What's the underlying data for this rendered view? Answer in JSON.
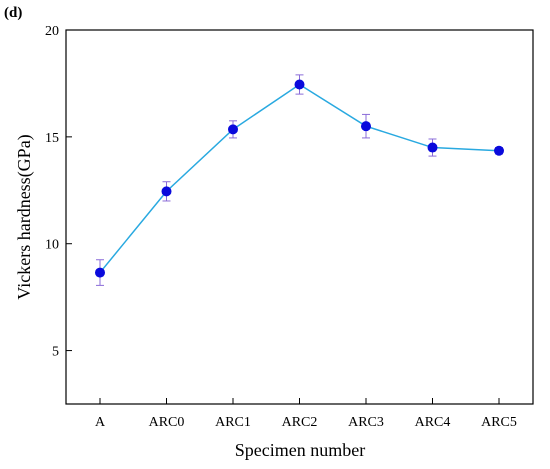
{
  "panel_label": "(d)",
  "chart_data": {
    "type": "line",
    "xlabel": "Specimen number",
    "ylabel": "Vickers hardness(GPa)",
    "categories": [
      "A",
      "ARC0",
      "ARC1",
      "ARC2",
      "ARC3",
      "ARC4",
      "ARC5"
    ],
    "series": [
      {
        "values": [
          8.65,
          12.45,
          15.35,
          17.45,
          15.5,
          14.5,
          14.35
        ],
        "errors": [
          0.6,
          0.45,
          0.4,
          0.45,
          0.55,
          0.4,
          0.15
        ],
        "line_color": "#29a9e0",
        "marker_color": "#0a0adc",
        "error_color": "#8a6bd8"
      }
    ],
    "ylim": [
      2.5,
      20
    ],
    "yticks": [
      5,
      10,
      15,
      20
    ],
    "grid": false,
    "legend": "none"
  }
}
